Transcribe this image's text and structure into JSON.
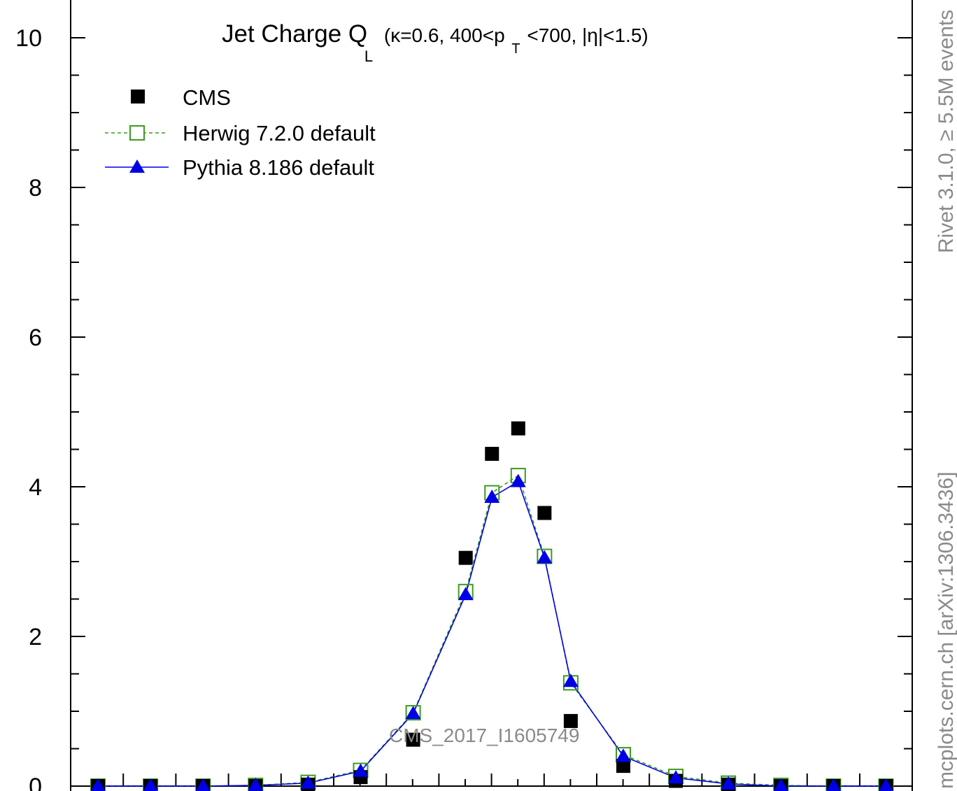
{
  "chart_data": {
    "type": "scatter",
    "title": {
      "main": "Jet Charge Q",
      "main_sub": "L",
      "cond_pre": "(κ=0.6, 400<p",
      "cond_sub": "T",
      "cond_post": "<700, |η|<1.5)"
    },
    "xlabel": "",
    "ylabel": "",
    "ylim": [
      0,
      10.2
    ],
    "y_ticks": [
      "0",
      "2",
      "4",
      "6",
      "8",
      "10"
    ],
    "grid": false,
    "legend_position": "top-left",
    "x": [
      0,
      1,
      2,
      3,
      4,
      5,
      6,
      7,
      7.5,
      8,
      8.5,
      9,
      10,
      11,
      12,
      13,
      14,
      15
    ],
    "series": [
      {
        "name": "CMS",
        "style": "markers",
        "marker": "filled-square",
        "color": "#000000",
        "values": [
          0,
          0,
          0,
          0,
          0.02,
          0.12,
          0.62,
          3.05,
          4.44,
          4.78,
          3.65,
          0.87,
          0.27,
          0.07,
          0.02,
          0,
          0,
          0
        ]
      },
      {
        "name": "Herwig 7.2.0 default",
        "style": "dashed",
        "marker": "open-square",
        "color": "#3a9c1f",
        "values": [
          0,
          0,
          0,
          0.01,
          0.05,
          0.21,
          0.98,
          2.6,
          3.92,
          4.15,
          3.07,
          1.38,
          0.42,
          0.13,
          0.04,
          0.01,
          0,
          0
        ]
      },
      {
        "name": "Pythia 8.186 default",
        "style": "solid",
        "marker": "filled-triangle",
        "color": "#0000e6",
        "values": [
          0,
          0,
          0,
          0.01,
          0.04,
          0.2,
          0.97,
          2.56,
          3.86,
          4.07,
          3.05,
          1.4,
          0.4,
          0.11,
          0.03,
          0,
          0,
          0
        ]
      }
    ],
    "annotation": "CMS_2017_I1605749",
    "side_label_top": "Rivet 3.1.0, ≥ 5.5M events",
    "side_label_bottom": "mcplots.cern.ch [arXiv:1306.3436]"
  }
}
